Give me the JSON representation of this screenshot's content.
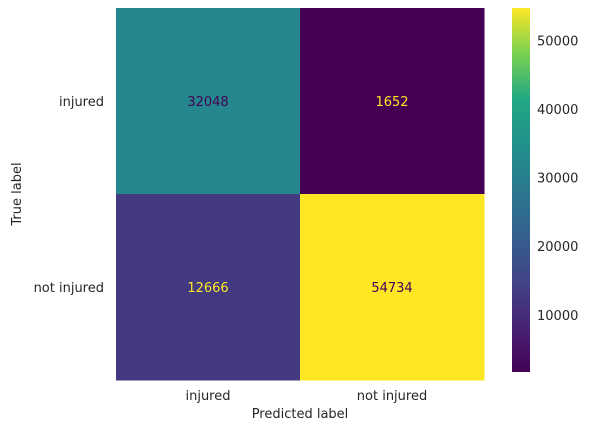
{
  "chart_data": {
    "type": "heatmap",
    "title": "",
    "xlabel": "Predicted label",
    "ylabel": "True label",
    "x_categories": [
      "injured",
      "not injured"
    ],
    "y_categories": [
      "injured",
      "not injured"
    ],
    "values": [
      [
        32048,
        1652
      ],
      [
        12666,
        54734
      ]
    ],
    "colormap": "viridis",
    "colorbar": {
      "min": 1652,
      "max": 54734,
      "ticks": [
        10000,
        20000,
        30000,
        40000,
        50000
      ],
      "tick_labels": [
        "10000",
        "20000",
        "30000",
        "40000",
        "50000"
      ]
    },
    "grid": false,
    "dark_text_color": "#440154",
    "light_text_color": "#fde725"
  }
}
